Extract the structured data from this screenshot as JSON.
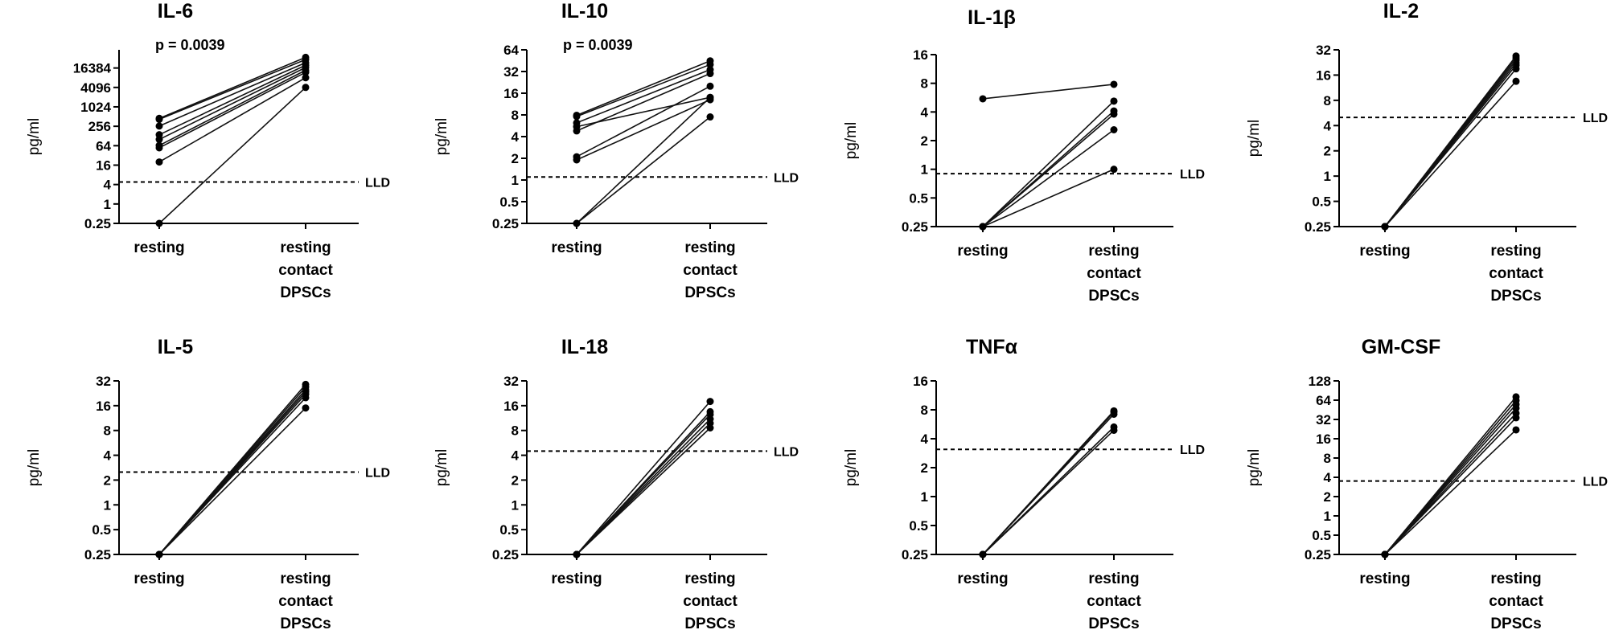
{
  "figure": {
    "categories": [
      "resting",
      "resting contact DPSCs"
    ],
    "ylabel": "pg/ml",
    "threshold_label": "LLD"
  },
  "chart_data": [
    {
      "type": "line",
      "title": "IL-6",
      "ylabel": "pg/ml",
      "yscale": "log2",
      "ylim": [
        0.25,
        60000
      ],
      "yticks": [
        "0.25",
        "1",
        "4",
        "16",
        "64",
        "256",
        "1024",
        "4096",
        "16384"
      ],
      "lld": 4.8,
      "annotation": "p = 0.0039",
      "pairs": [
        [
          0.25,
          4096
        ],
        [
          20,
          8192
        ],
        [
          55,
          12000
        ],
        [
          65,
          14000
        ],
        [
          100,
          17000
        ],
        [
          140,
          20000
        ],
        [
          260,
          24000
        ],
        [
          420,
          30000
        ],
        [
          450,
          35000
        ]
      ]
    },
    {
      "type": "line",
      "title": "IL-10",
      "ylabel": "pg/ml",
      "yscale": "log2",
      "ylim": [
        0.25,
        64
      ],
      "yticks": [
        "0.25",
        "0.5",
        "1",
        "2",
        "4",
        "8",
        "16",
        "32",
        "64"
      ],
      "lld": 1.1,
      "annotation": "p = 0.0039",
      "pairs": [
        [
          0.25,
          7.5
        ],
        [
          0.25,
          14
        ],
        [
          1.9,
          13
        ],
        [
          2.1,
          20
        ],
        [
          4.8,
          30
        ],
        [
          5.5,
          14
        ],
        [
          6.2,
          34
        ],
        [
          7.6,
          40
        ],
        [
          7.9,
          45
        ]
      ]
    },
    {
      "type": "line",
      "title": "IL-1β",
      "ylabel": "pg/ml",
      "yscale": "log2",
      "ylim": [
        0.25,
        16
      ],
      "yticks": [
        "0.25",
        "0.5",
        "1",
        "2",
        "4",
        "8",
        "16"
      ],
      "lld": 0.9,
      "pairs": [
        [
          5.5,
          7.8
        ],
        [
          0.25,
          5.2
        ],
        [
          0.25,
          4.1
        ],
        [
          0.25,
          3.8
        ],
        [
          0.25,
          2.6
        ],
        [
          0.25,
          1.0
        ]
      ]
    },
    {
      "type": "line",
      "title": "IL-2",
      "ylabel": "pg/ml",
      "yscale": "log2",
      "ylim": [
        0.25,
        32
      ],
      "yticks": [
        "0.25",
        "0.5",
        "1",
        "2",
        "4",
        "8",
        "16",
        "32"
      ],
      "lld": 5.0,
      "pairs": [
        [
          0.25,
          13.5
        ],
        [
          0.25,
          19
        ],
        [
          0.25,
          21
        ],
        [
          0.25,
          22.5
        ],
        [
          0.25,
          24
        ],
        [
          0.25,
          25.5
        ],
        [
          0.25,
          27
        ]
      ]
    },
    {
      "type": "line",
      "title": "IL-5",
      "ylabel": "pg/ml",
      "yscale": "log2",
      "ylim": [
        0.25,
        32
      ],
      "yticks": [
        "0.25",
        "0.5",
        "1",
        "2",
        "4",
        "8",
        "16",
        "32"
      ],
      "lld": 2.5,
      "pairs": [
        [
          0.25,
          15
        ],
        [
          0.25,
          20
        ],
        [
          0.25,
          22
        ],
        [
          0.25,
          23.5
        ],
        [
          0.25,
          25
        ],
        [
          0.25,
          27
        ],
        [
          0.25,
          29
        ]
      ]
    },
    {
      "type": "line",
      "title": "IL-18",
      "ylabel": "pg/ml",
      "yscale": "log2",
      "ylim": [
        0.25,
        32
      ],
      "yticks": [
        "0.25",
        "0.5",
        "1",
        "2",
        "4",
        "8",
        "16",
        "32"
      ],
      "lld": 4.5,
      "pairs": [
        [
          0.25,
          8.6
        ],
        [
          0.25,
          9.8
        ],
        [
          0.25,
          11
        ],
        [
          0.25,
          12.5
        ],
        [
          0.25,
          13.5
        ],
        [
          0.25,
          18
        ]
      ]
    },
    {
      "type": "line",
      "title": "TNFα",
      "ylabel": "pg/ml",
      "yscale": "log2",
      "ylim": [
        0.25,
        16
      ],
      "yticks": [
        "0.25",
        "0.5",
        "1",
        "2",
        "4",
        "8",
        "16"
      ],
      "lld": 3.1,
      "pairs": [
        [
          0.25,
          4.9
        ],
        [
          0.25,
          5.3
        ],
        [
          0.25,
          7.2
        ],
        [
          0.25,
          7.6
        ],
        [
          0.25,
          7.8
        ]
      ]
    },
    {
      "type": "line",
      "title": "GM-CSF",
      "ylabel": "pg/ml",
      "yscale": "log2",
      "ylim": [
        0.25,
        128
      ],
      "yticks": [
        "0.25",
        "0.5",
        "1",
        "2",
        "4",
        "8",
        "16",
        "32",
        "64",
        "128"
      ],
      "lld": 3.5,
      "pairs": [
        [
          0.25,
          22
        ],
        [
          0.25,
          34
        ],
        [
          0.25,
          40
        ],
        [
          0.25,
          48
        ],
        [
          0.25,
          55
        ],
        [
          0.25,
          63
        ],
        [
          0.25,
          72
        ]
      ]
    }
  ]
}
